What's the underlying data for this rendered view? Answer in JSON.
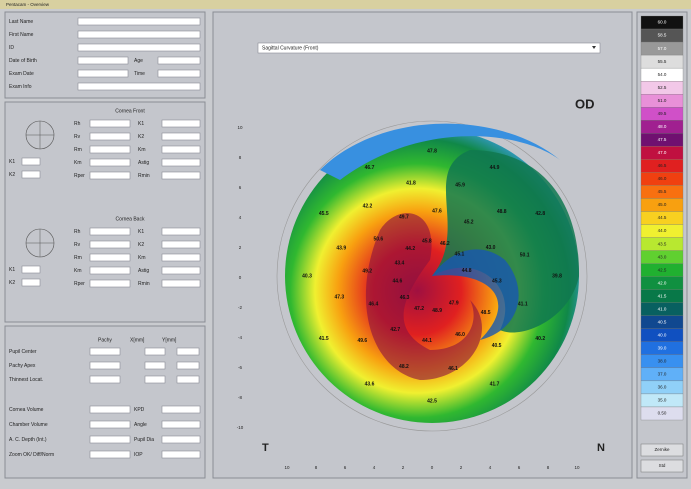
{
  "window": {
    "title": "Pentacam - Overview"
  },
  "patient": {
    "fields": [
      "Last Name",
      "First Name",
      "ID",
      "Date of Birth",
      "Exam Date",
      "Exam Info"
    ],
    "side_fields": [
      "Age",
      "Time"
    ]
  },
  "cornea_front": {
    "title": "Cornea Front",
    "left": [
      "Rh",
      "Rv",
      "Rm",
      "K1",
      "K2"
    ],
    "mid": [
      "Rh",
      "Rv",
      "Rm",
      "Km",
      "Rper"
    ],
    "right": [
      "K1",
      "K2",
      "Km",
      "Astig",
      "Rmin"
    ]
  },
  "cornea_back": {
    "title": "Cornea Back",
    "left": [
      "Rh",
      "Rv",
      "Rm",
      "K1",
      "K2"
    ],
    "mid": [
      "Rh",
      "Rv",
      "Rm",
      "Km",
      "Rper"
    ],
    "right": [
      "K1",
      "K2",
      "Km",
      "Astig",
      "Rmin"
    ]
  },
  "pachy": {
    "columns": [
      "Pachy",
      "X[mm]",
      "Y[mm]"
    ],
    "rows": [
      "Pupil Center",
      "Pachy Apex",
      "Thinnest Locat."
    ]
  },
  "volumes": {
    "left": [
      "Cornea Volume",
      "Chamber Volume",
      "A. C. Depth (Int.)",
      "Zoom OK/ Diff/Norm"
    ],
    "right": [
      "KPD",
      "Angle",
      "Pupil Dia",
      "IOP"
    ]
  },
  "map": {
    "selector": "Sagittal Curvature (Front)",
    "eye": "OD",
    "temporal": "T",
    "nasal": "N",
    "y_ticks": [
      "10",
      "8",
      "6",
      "4",
      "2",
      "0",
      "-2",
      "-4",
      "-6",
      "-8",
      "-10"
    ],
    "x_ticks": [
      "10",
      "8",
      "6",
      "4",
      "2",
      "0",
      "2",
      "4",
      "6",
      "8",
      "10"
    ],
    "labels": [
      "39.8",
      "40.2",
      "41.7",
      "42.5",
      "43.6",
      "41.5",
      "40.3",
      "45.5",
      "46.7",
      "47.8",
      "44.9",
      "42.8",
      "41.1",
      "40.5",
      "46.1",
      "48.2",
      "49.6",
      "47.3",
      "43.9",
      "42.2",
      "41.8",
      "45.9",
      "48.8",
      "50.1",
      "48.5",
      "46.0",
      "44.1",
      "42.7",
      "46.4",
      "49.2",
      "50.6",
      "49.7",
      "47.6",
      "45.2",
      "43.0",
      "45.3",
      "47.9",
      "48.9",
      "47.2",
      "46.3",
      "44.6",
      "43.4",
      "44.2",
      "45.8",
      "46.2",
      "45.1",
      "44.8"
    ]
  },
  "scale": {
    "labels": [
      "60.0",
      "58.5",
      "57.0",
      "55.5",
      "54.0",
      "52.5",
      "51.0",
      "49.5",
      "48.0",
      "47.5",
      "47.0",
      "46.5",
      "46.0",
      "45.5",
      "45.0",
      "44.5",
      "44.0",
      "43.5",
      "43.0",
      "42.5",
      "42.0",
      "41.5",
      "41.0",
      "40.5",
      "40.0",
      "39.0",
      "38.0",
      "37.0",
      "36.0",
      "35.0",
      "0.50"
    ],
    "colors": [
      "#111",
      "#555",
      "#999",
      "#ddd",
      "#fff",
      "#f2c8e8",
      "#e890d8",
      "#d050c8",
      "#a02090",
      "#701070",
      "#c01040",
      "#e02020",
      "#f04010",
      "#f87010",
      "#f8a010",
      "#f8d020",
      "#f0f030",
      "#b8e830",
      "#60d030",
      "#20b030",
      "#109040",
      "#087848",
      "#086060",
      "#104890",
      "#1050c0",
      "#2070e0",
      "#3890f0",
      "#60b0f8",
      "#90d0f8",
      "#c0e8f8",
      "#dde"
    ],
    "buttons": [
      "Zernike",
      "Std"
    ]
  }
}
